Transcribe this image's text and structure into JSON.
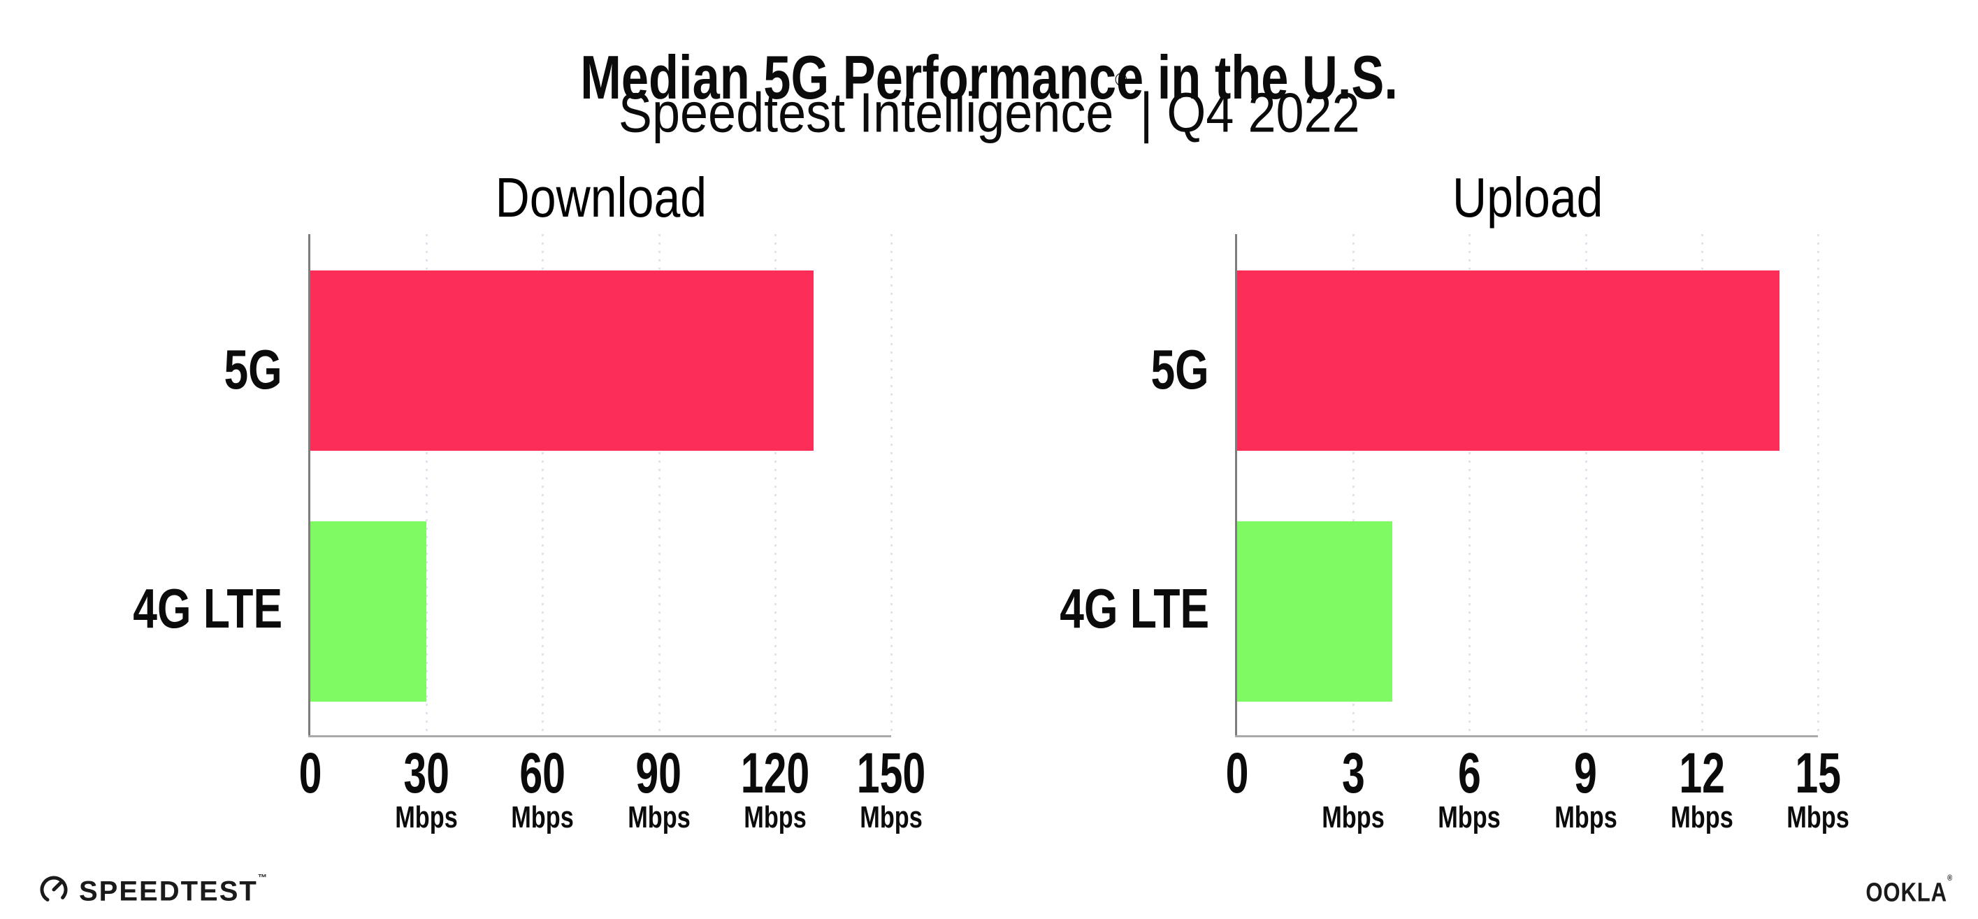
{
  "header": {
    "title": "Median 5G Performance in the U.S.",
    "subtitle_brand": "Speedtest Intelligence",
    "subtitle_reg": "®",
    "subtitle_rest": " | Q4 2022"
  },
  "chart_data": [
    {
      "type": "bar",
      "orientation": "horizontal",
      "title": "Download",
      "categories": [
        "5G",
        "4G LTE"
      ],
      "values": [
        130,
        30
      ],
      "unit": "Mbps",
      "xticks": [
        0,
        30,
        60,
        90,
        120,
        150
      ],
      "xlim": [
        0,
        150
      ],
      "bar_colors": [
        "#FC2D56",
        "#80FA62"
      ],
      "grid": "dotted-vertical-at-ticks",
      "legend": "none"
    },
    {
      "type": "bar",
      "orientation": "horizontal",
      "title": "Upload",
      "categories": [
        "5G",
        "4G LTE"
      ],
      "values": [
        14,
        4
      ],
      "unit": "Mbps",
      "xticks": [
        0,
        3,
        6,
        9,
        12,
        15
      ],
      "xlim": [
        0,
        15
      ],
      "bar_colors": [
        "#FC2D56",
        "#80FA62"
      ],
      "grid": "dotted-vertical-at-ticks",
      "legend": "none"
    }
  ],
  "footer": {
    "speedtest_label": "SPEEDTEST",
    "speedtest_tm": "™",
    "ookla_label": "OOKLA",
    "ookla_reg": "®"
  },
  "palette": {
    "bar_5g": "#FC2D56",
    "bar_4g_lte": "#80FA62",
    "grid_dot": "#E0E3EF",
    "axis_spine": "#7D7D7D",
    "axis_baseline": "#A9A9A9",
    "text": "#0B0B0B",
    "background": "#FFFFFF"
  }
}
